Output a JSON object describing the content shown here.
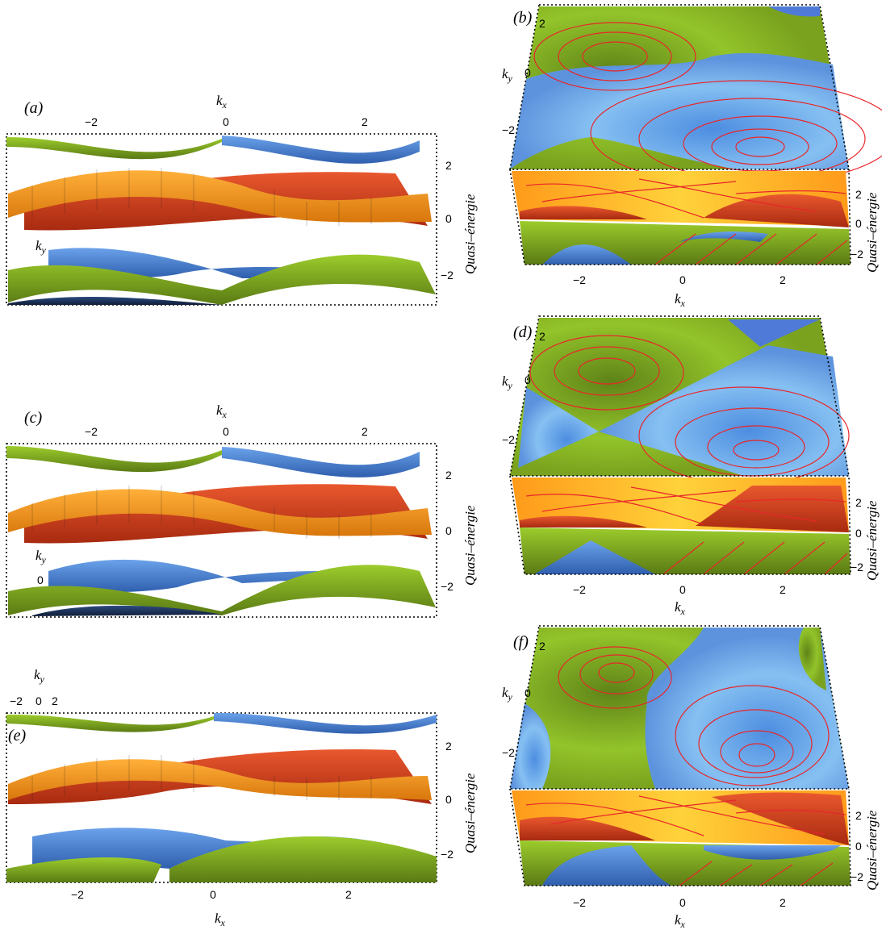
{
  "figure": {
    "panels": [
      {
        "id": "a",
        "label": "(a)",
        "view": "side",
        "xlabel": "k",
        "xsub": "x",
        "ylabel": "k",
        "ysub": "y",
        "zlabel": "Quasi–énergie",
        "xticks": [
          "−2",
          "0",
          "2"
        ],
        "zticks": [
          "2",
          "0",
          "−2"
        ]
      },
      {
        "id": "b",
        "label": "(b)",
        "view": "top",
        "xlabel": "k",
        "xsub": "x",
        "ylabel": "k",
        "ysub": "y",
        "zlabel": "Quasi–énergie",
        "xticks": [
          "−2",
          "0",
          "2"
        ],
        "yticks": [
          "2",
          "0",
          "−2"
        ],
        "zticks": [
          "2",
          "0",
          "−2"
        ]
      },
      {
        "id": "c",
        "label": "(c)",
        "view": "side",
        "xlabel": "k",
        "xsub": "x",
        "ylabel": "k",
        "ysub": "y",
        "zlabel": "Quasi–énergie",
        "xticks": [
          "−2",
          "0",
          "2"
        ],
        "yticks": [
          "0"
        ],
        "zticks": [
          "2",
          "0",
          "−2"
        ]
      },
      {
        "id": "d",
        "label": "(d)",
        "view": "top",
        "xlabel": "k",
        "xsub": "x",
        "ylabel": "k",
        "ysub": "y",
        "zlabel": "Quasi–énergie",
        "xticks": [
          "−2",
          "0",
          "2"
        ],
        "yticks": [
          "2",
          "0",
          "−2"
        ],
        "zticks": [
          "2",
          "0",
          "−2"
        ]
      },
      {
        "id": "e",
        "label": "(e)",
        "view": "front",
        "xlabel": "k",
        "xsub": "x",
        "ylabel": "k",
        "ysub": "y",
        "zlabel": "Quasi–énergie",
        "xticks": [
          "−2",
          "0",
          "2"
        ],
        "yticks": [
          "−2",
          "0",
          "2"
        ],
        "zticks": [
          "2",
          "0",
          "−2"
        ]
      },
      {
        "id": "f",
        "label": "(f)",
        "view": "top",
        "xlabel": "k",
        "xsub": "x",
        "ylabel": "k",
        "ysub": "y",
        "zlabel": "Quasi–énergie",
        "xticks": [
          "−2",
          "0",
          "2"
        ],
        "yticks": [
          "2",
          "0",
          "−2"
        ],
        "zticks": [
          "2",
          "0",
          "−2"
        ]
      }
    ],
    "colors": {
      "green": "#7a9a1e",
      "green_light": "#9ccc2c",
      "blue": "#4f86d8",
      "blue_light": "#8ec8f4",
      "navy": "#1c3358",
      "orange": "#f39a1e",
      "red": "#d9441f",
      "yellow": "#ffcf2e",
      "contour": "#e8262a"
    }
  },
  "chart_data": [
    {
      "panel": "a",
      "type": "surface",
      "bands": 4,
      "x_range": [
        -3.14,
        3.14
      ],
      "z_range": [
        -3,
        3
      ],
      "band_colors": [
        "green",
        "blue",
        "orange",
        "red"
      ]
    },
    {
      "panel": "b",
      "type": "surface",
      "bands": 4,
      "x_range": [
        -3.14,
        3.14
      ],
      "y_range": [
        -3.14,
        3.14
      ],
      "z_range": [
        -3,
        3
      ],
      "contours": true
    },
    {
      "panel": "c",
      "type": "surface",
      "bands": 4,
      "x_range": [
        -3.14,
        3.14
      ],
      "z_range": [
        -3,
        3
      ]
    },
    {
      "panel": "d",
      "type": "surface",
      "bands": 4,
      "x_range": [
        -3.14,
        3.14
      ],
      "y_range": [
        -3.14,
        3.14
      ],
      "z_range": [
        -3,
        3
      ],
      "contours": true
    },
    {
      "panel": "e",
      "type": "surface",
      "bands": 4,
      "x_range": [
        -3.14,
        3.14
      ],
      "z_range": [
        -3,
        3
      ]
    },
    {
      "panel": "f",
      "type": "surface",
      "bands": 4,
      "x_range": [
        -3.14,
        3.14
      ],
      "y_range": [
        -3.14,
        3.14
      ],
      "z_range": [
        -3,
        3
      ],
      "contours": true
    }
  ]
}
